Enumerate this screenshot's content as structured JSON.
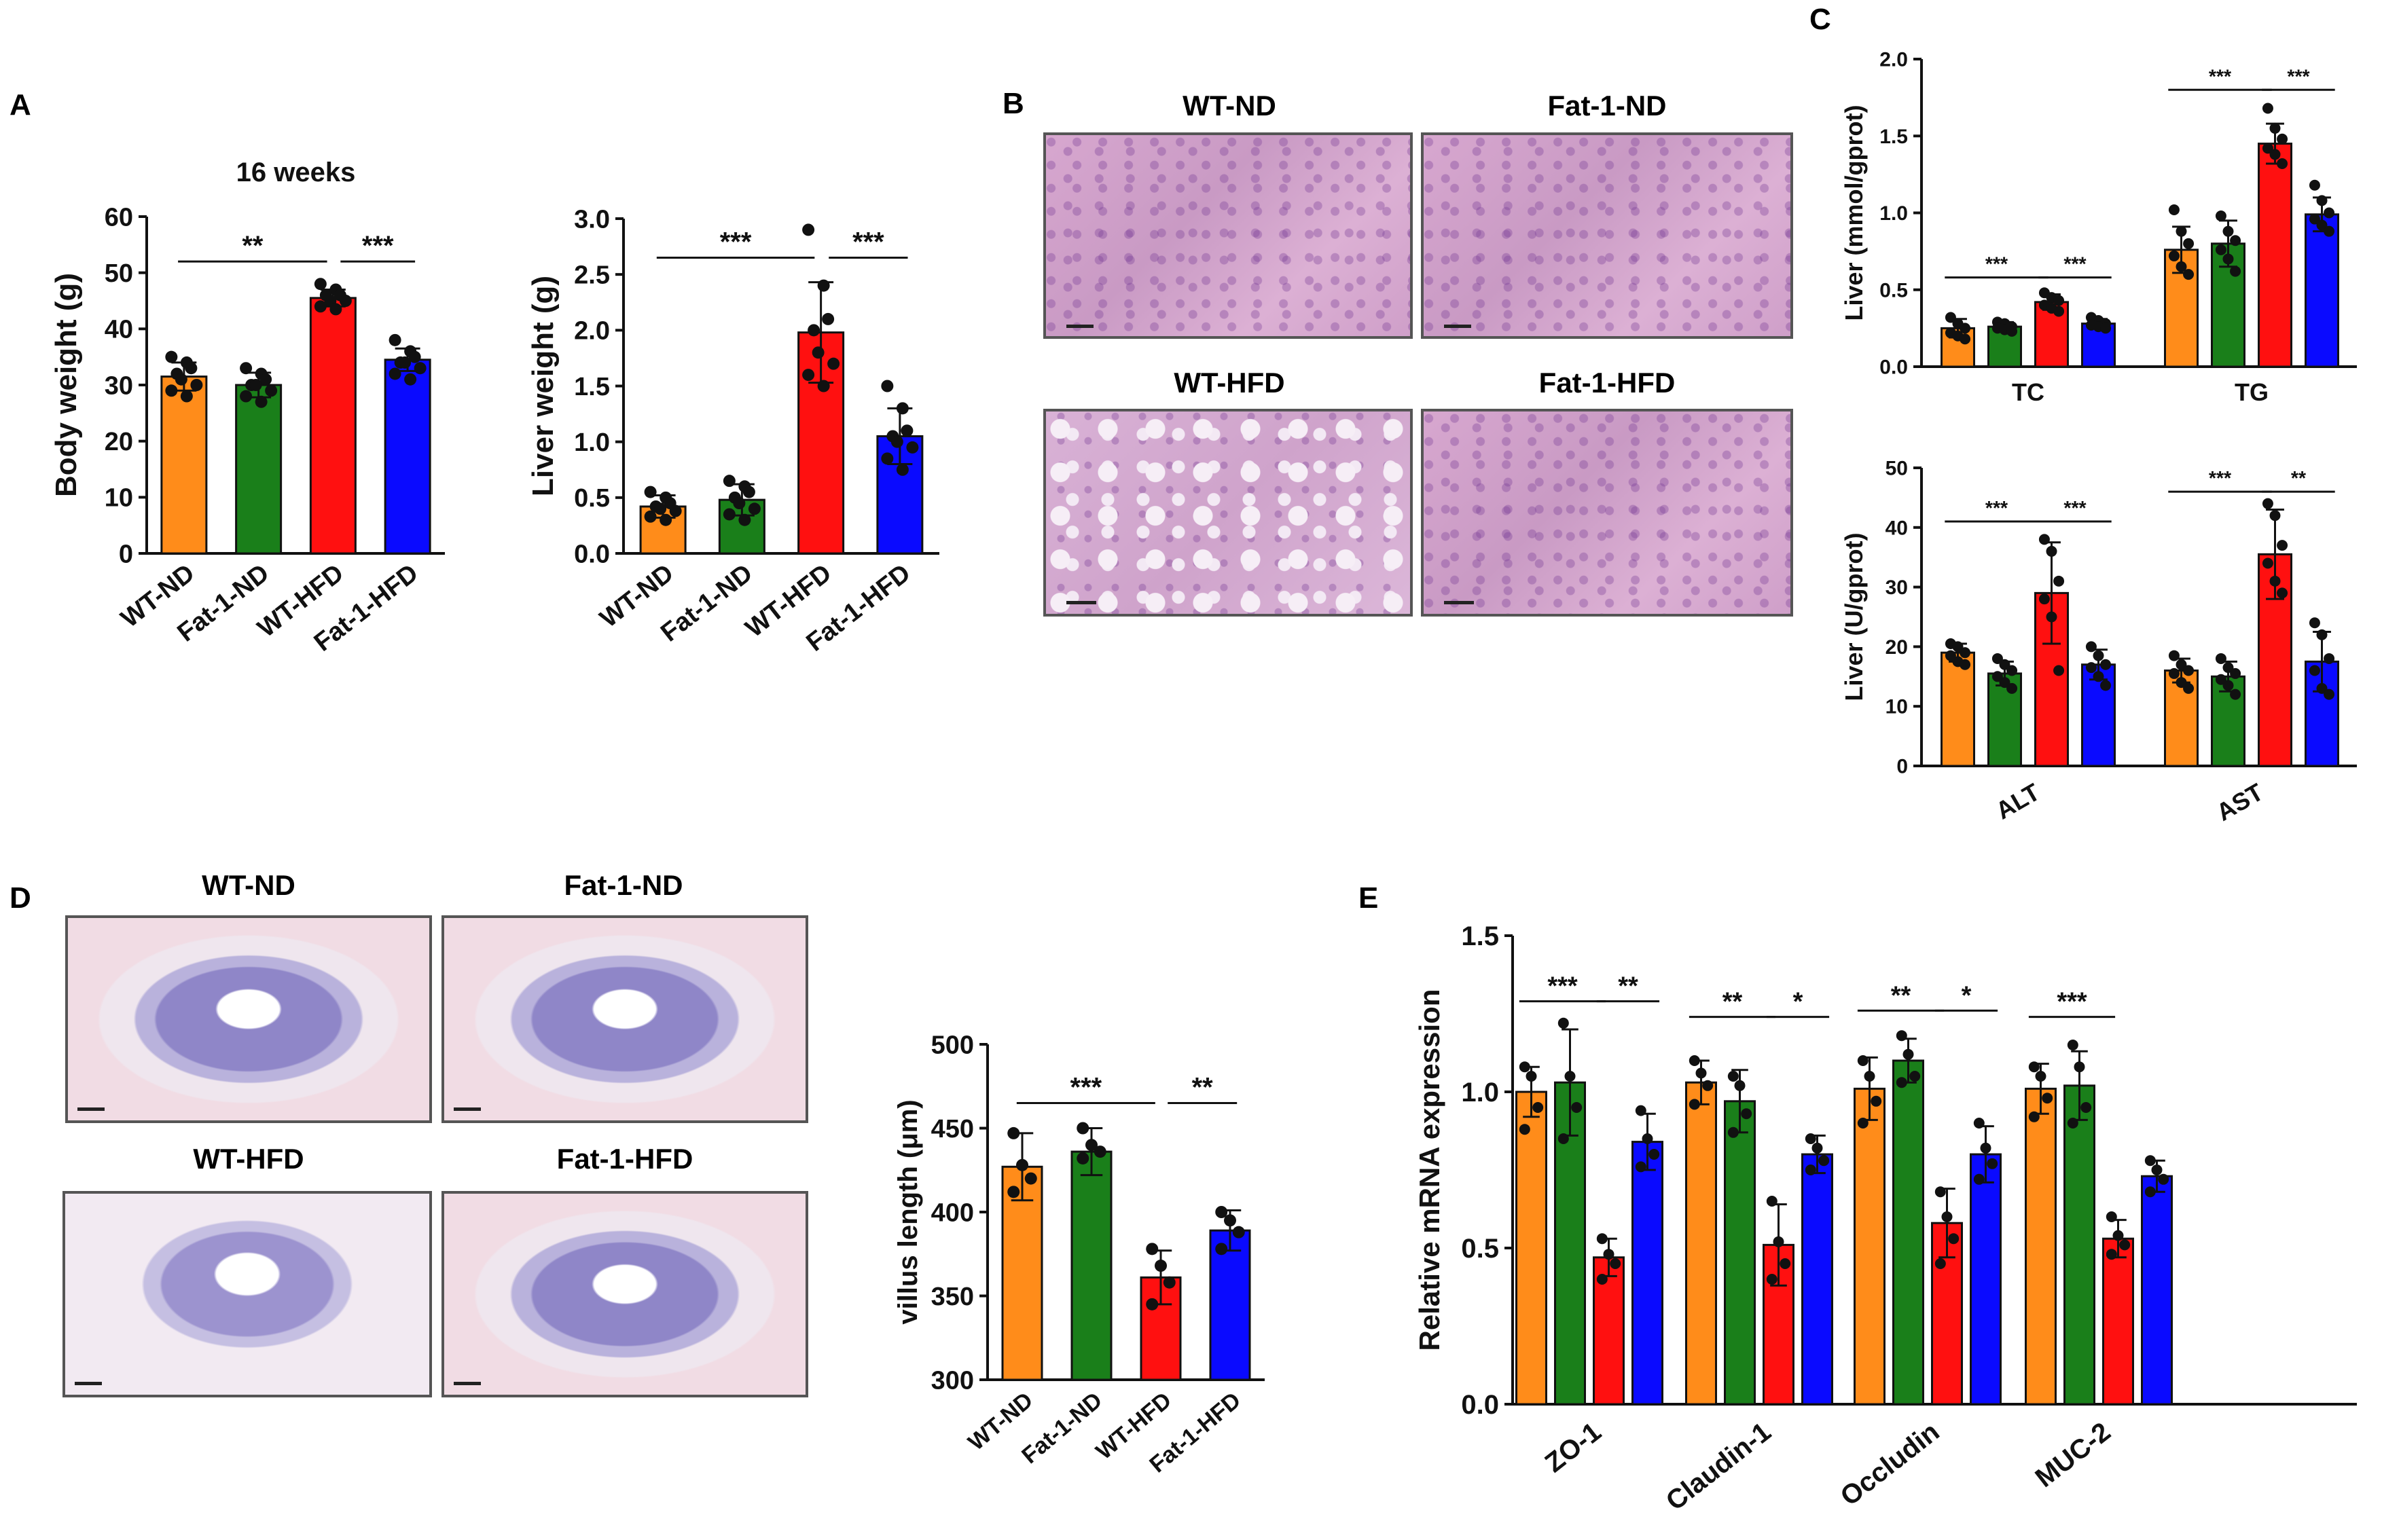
{
  "panel_letters": {
    "a": "A",
    "b": "B",
    "c": "C",
    "d": "D",
    "e": "E"
  },
  "panel_b": {
    "labels": [
      "WT-ND",
      "Fat-1-ND",
      "WT-HFD",
      "Fat-1-HFD"
    ]
  },
  "panel_d": {
    "labels": [
      "WT-ND",
      "Fat-1-ND",
      "WT-HFD",
      "Fat-1-HFD"
    ]
  },
  "colors": {
    "WT-ND": "#ff8c1a",
    "Fat-1-ND": "#1a7f1a",
    "WT-HFD": "#ff1010",
    "Fat-1-HFD": "#0a0aff"
  },
  "chart_data": [
    {
      "id": "body-weight",
      "type": "bar",
      "title": "16 weeks",
      "ylabel": "Body weight (g)",
      "categories": [
        "WT-ND",
        "Fat-1-ND",
        "WT-HFD",
        "Fat-1-HFD"
      ],
      "values": [
        31.5,
        30,
        45.5,
        34.5
      ],
      "errors": [
        2.5,
        2.2,
        1.5,
        2
      ],
      "points": [
        [
          35,
          34,
          33,
          32,
          31,
          30,
          29,
          28
        ],
        [
          33,
          32,
          31,
          30,
          30,
          29,
          28,
          27
        ],
        [
          48,
          47,
          46,
          46,
          45,
          45,
          44,
          43.5
        ],
        [
          38,
          36,
          35,
          34,
          34,
          33,
          32,
          31
        ]
      ],
      "ylim": [
        0,
        60
      ],
      "yticks": [
        "0",
        "10",
        "20",
        "30",
        "40",
        "50",
        "60"
      ],
      "sig": [
        {
          "from": 0,
          "to": 2,
          "label": "**",
          "y": 52
        },
        {
          "from": 2,
          "to": 3,
          "label": "***",
          "y": 52
        }
      ]
    },
    {
      "id": "liver-weight",
      "type": "bar",
      "ylabel": "Liver weight (g)",
      "categories": [
        "WT-ND",
        "Fat-1-ND",
        "WT-HFD",
        "Fat-1-HFD"
      ],
      "values": [
        0.42,
        0.48,
        1.98,
        1.05
      ],
      "errors": [
        0.1,
        0.14,
        0.45,
        0.25
      ],
      "points": [
        [
          0.55,
          0.5,
          0.45,
          0.42,
          0.4,
          0.38,
          0.33,
          0.3
        ],
        [
          0.65,
          0.6,
          0.55,
          0.5,
          0.45,
          0.4,
          0.35,
          0.3
        ],
        [
          2.9,
          2.4,
          2.1,
          2.0,
          1.8,
          1.7,
          1.6,
          1.5
        ],
        [
          1.5,
          1.3,
          1.1,
          1.05,
          1.0,
          0.95,
          0.85,
          0.75
        ]
      ],
      "ylim": [
        0,
        3.0
      ],
      "yticks": [
        "0.0",
        "0.5",
        "1.0",
        "1.5",
        "2.0",
        "2.5",
        "3.0"
      ],
      "sig": [
        {
          "from": 0,
          "to": 2,
          "label": "***",
          "y": 2.65
        },
        {
          "from": 2,
          "to": 3,
          "label": "***",
          "y": 2.65
        }
      ]
    },
    {
      "id": "liver-tc-tg",
      "type": "bar",
      "ylabel": "Liver (mmol/gprot)",
      "categories": [
        "TC",
        "TG"
      ],
      "series": [
        {
          "name": "WT-ND",
          "values": [
            0.25,
            0.76
          ],
          "errors": [
            0.06,
            0.15
          ],
          "points": [
            [
              0.32,
              0.28,
              0.25,
              0.22,
              0.2,
              0.18
            ],
            [
              1.02,
              0.88,
              0.8,
              0.72,
              0.65,
              0.6
            ]
          ]
        },
        {
          "name": "Fat-1-ND",
          "values": [
            0.26,
            0.8
          ],
          "errors": [
            0.03,
            0.15
          ],
          "points": [
            [
              0.29,
              0.28,
              0.26,
              0.25,
              0.24,
              0.23
            ],
            [
              0.98,
              0.88,
              0.82,
              0.76,
              0.7,
              0.62
            ]
          ]
        },
        {
          "name": "WT-HFD",
          "values": [
            0.42,
            1.45
          ],
          "errors": [
            0.05,
            0.13
          ],
          "points": [
            [
              0.48,
              0.45,
              0.43,
              0.4,
              0.38,
              0.36
            ],
            [
              1.68,
              1.55,
              1.48,
              1.42,
              1.38,
              1.32
            ]
          ]
        },
        {
          "name": "Fat-1-HFD",
          "values": [
            0.28,
            0.99
          ],
          "errors": [
            0.03,
            0.11
          ],
          "points": [
            [
              0.32,
              0.3,
              0.28,
              0.27,
              0.26,
              0.25
            ],
            [
              1.18,
              1.08,
              1.0,
              0.96,
              0.92,
              0.88
            ]
          ]
        }
      ],
      "ylim": [
        0,
        2.0
      ],
      "yticks": [
        "0.0",
        "0.5",
        "1.0",
        "1.5",
        "2.0"
      ],
      "sig": [
        {
          "group": 0,
          "from": 0,
          "to": 2,
          "label": "***",
          "y": 0.58
        },
        {
          "group": 0,
          "from": 2,
          "to": 3,
          "label": "***",
          "y": 0.58
        },
        {
          "group": 1,
          "from": 0,
          "to": 2,
          "label": "***",
          "y": 1.8
        },
        {
          "group": 1,
          "from": 2,
          "to": 3,
          "label": "***",
          "y": 1.8
        }
      ]
    },
    {
      "id": "liver-alt-ast",
      "type": "bar",
      "ylabel": "Liver (U/gprot)",
      "categories": [
        "ALT",
        "AST"
      ],
      "series": [
        {
          "name": "WT-ND",
          "values": [
            19,
            16
          ],
          "errors": [
            1.5,
            2
          ],
          "points": [
            [
              20.5,
              20,
              19,
              18.5,
              17.5,
              17
            ],
            [
              18.5,
              17,
              16,
              15.5,
              14,
              13
            ]
          ]
        },
        {
          "name": "Fat-1-ND",
          "values": [
            15.5,
            15
          ],
          "errors": [
            2,
            2.5
          ],
          "points": [
            [
              18,
              17,
              16,
              15,
              14,
              13
            ],
            [
              18,
              16.5,
              15.5,
              14.5,
              13.5,
              12
            ]
          ]
        },
        {
          "name": "WT-HFD",
          "values": [
            29,
            35.5
          ],
          "errors": [
            8.5,
            7.5
          ],
          "points": [
            [
              38,
              36,
              31,
              28,
              25,
              16
            ],
            [
              44,
              42,
              37,
              34,
              31,
              29
            ]
          ]
        },
        {
          "name": "Fat-1-HFD",
          "values": [
            17,
            17.5
          ],
          "errors": [
            2.5,
            5
          ],
          "points": [
            [
              20,
              18.5,
              17,
              16.5,
              15,
              13.5
            ],
            [
              24,
              22,
              18,
              16,
              13,
              12
            ]
          ]
        }
      ],
      "ylim": [
        0,
        50
      ],
      "yticks": [
        "0",
        "10",
        "20",
        "30",
        "40",
        "50"
      ],
      "sig": [
        {
          "group": 0,
          "from": 0,
          "to": 2,
          "label": "***",
          "y": 41
        },
        {
          "group": 0,
          "from": 2,
          "to": 3,
          "label": "***",
          "y": 41
        },
        {
          "group": 1,
          "from": 0,
          "to": 2,
          "label": "***",
          "y": 46
        },
        {
          "group": 1,
          "from": 2,
          "to": 3,
          "label": "**",
          "y": 46
        }
      ]
    },
    {
      "id": "villus-length",
      "type": "bar",
      "ylabel": "villus length (μm)",
      "categories": [
        "WT-ND",
        "Fat-1-ND",
        "WT-HFD",
        "Fat-1-HFD"
      ],
      "values": [
        427,
        436,
        361,
        389
      ],
      "errors": [
        20,
        14,
        16,
        12
      ],
      "points": [
        [
          447,
          428,
          420,
          412
        ],
        [
          450,
          440,
          436,
          432
        ],
        [
          378,
          368,
          358,
          345
        ],
        [
          400,
          395,
          388,
          378
        ]
      ],
      "ylim": [
        300,
        500
      ],
      "yticks": [
        "300",
        "350",
        "400",
        "450",
        "500"
      ],
      "sig": [
        {
          "from": 0,
          "to": 2,
          "label": "***",
          "y": 465
        },
        {
          "from": 2,
          "to": 3,
          "label": "**",
          "y": 465
        }
      ]
    },
    {
      "id": "mrna-expression",
      "type": "bar",
      "ylabel": "Relative mRNA expression",
      "categories": [
        "ZO-1",
        "Claudin-1",
        "Occludin",
        "MUC-2"
      ],
      "series": [
        {
          "name": "WT-ND",
          "values": [
            1.0,
            1.03,
            1.01,
            1.01
          ],
          "errors": [
            0.08,
            0.07,
            0.1,
            0.08
          ],
          "points": [
            [
              1.08,
              1.05,
              0.95,
              0.88
            ],
            [
              1.1,
              1.06,
              1.02,
              0.96
            ],
            [
              1.1,
              1.05,
              0.97,
              0.9
            ],
            [
              1.08,
              1.05,
              0.98,
              0.92
            ]
          ]
        },
        {
          "name": "Fat-1-ND",
          "values": [
            1.03,
            0.97,
            1.1,
            1.02
          ],
          "errors": [
            0.17,
            0.1,
            0.07,
            0.11
          ],
          "points": [
            [
              1.22,
              1.05,
              0.95,
              0.85
            ],
            [
              1.05,
              1.02,
              0.93,
              0.87
            ],
            [
              1.18,
              1.12,
              1.05,
              1.03
            ],
            [
              1.15,
              1.08,
              0.95,
              0.9
            ]
          ]
        },
        {
          "name": "WT-HFD",
          "values": [
            0.47,
            0.51,
            0.58,
            0.53
          ],
          "errors": [
            0.06,
            0.13,
            0.11,
            0.06
          ],
          "points": [
            [
              0.53,
              0.48,
              0.45,
              0.4
            ],
            [
              0.65,
              0.52,
              0.45,
              0.4
            ],
            [
              0.68,
              0.6,
              0.53,
              0.45
            ],
            [
              0.6,
              0.54,
              0.51,
              0.48
            ]
          ]
        },
        {
          "name": "Fat-1-HFD",
          "values": [
            0.84,
            0.8,
            0.8,
            0.73
          ],
          "errors": [
            0.09,
            0.06,
            0.09,
            0.05
          ],
          "points": [
            [
              0.94,
              0.85,
              0.8,
              0.76
            ],
            [
              0.85,
              0.82,
              0.78,
              0.75
            ],
            [
              0.9,
              0.82,
              0.77,
              0.72
            ],
            [
              0.78,
              0.75,
              0.72,
              0.68
            ]
          ]
        }
      ],
      "ylim": [
        0,
        1.5
      ],
      "yticks": [
        "0.0",
        "0.5",
        "1.0",
        "1.5"
      ],
      "sig": [
        {
          "group": 0,
          "from": 0,
          "to": 2,
          "label": "***",
          "y": 1.29
        },
        {
          "group": 0,
          "from": 2,
          "to": 3,
          "label": "**",
          "y": 1.29
        },
        {
          "group": 1,
          "from": 0,
          "to": 2,
          "label": "**",
          "y": 1.24
        },
        {
          "group": 1,
          "from": 2,
          "to": 3,
          "label": "*",
          "y": 1.24
        },
        {
          "group": 2,
          "from": 0,
          "to": 2,
          "label": "**",
          "y": 1.26
        },
        {
          "group": 2,
          "from": 2,
          "to": 3,
          "label": "*",
          "y": 1.26
        },
        {
          "group": 3,
          "from": 0,
          "to": 2,
          "label": "***",
          "y": 1.24
        }
      ]
    }
  ]
}
